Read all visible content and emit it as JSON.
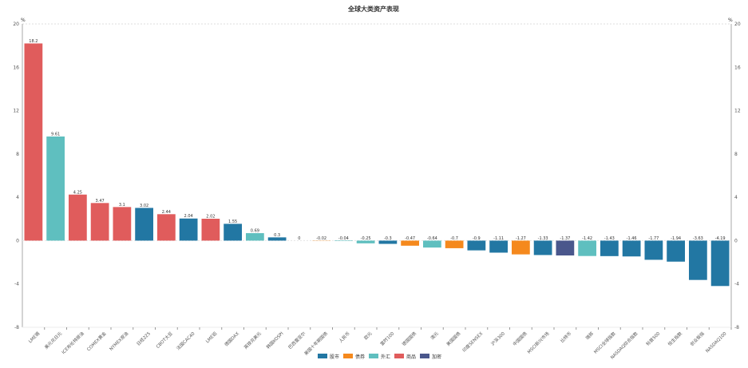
{
  "chart_data": {
    "type": "bar",
    "title": "全球大类资产表现",
    "ylabel": "%",
    "ylim": [
      -8,
      20
    ],
    "yticks": [
      20,
      16,
      12,
      8,
      4,
      0,
      -4,
      -8
    ],
    "grid": false,
    "legend_placement": "bottom",
    "legend": [
      {
        "name": "股市",
        "color": "#2277a3"
      },
      {
        "name": "债券",
        "color": "#f5891d"
      },
      {
        "name": "外汇",
        "color": "#5fbfbf"
      },
      {
        "name": "商品",
        "color": "#e05c5c"
      },
      {
        "name": "加密",
        "color": "#4a578c"
      }
    ],
    "categories": [
      "LME锡",
      "美元兑日元",
      "ICE布伦特原油",
      "COMEX黄金",
      "NYMEX原油",
      "日经225",
      "CBOT大豆",
      "法国CAC40",
      "LME铝",
      "德国DAX",
      "英镑兑美元",
      "韩国KOSPI",
      "巴西雷亚尔",
      "美国十年期国债",
      "人民币",
      "欧元",
      "富时100",
      "德国国债",
      "澳元",
      "美国国债",
      "印度SENSEX",
      "沪深300",
      "中国国债",
      "MSCI新兴市场",
      "比特币",
      "瑞郎",
      "MSCI全球指数",
      "NASDAQ综合指数",
      "标普500",
      "恒生指数",
      "创业板指",
      "NASDAQ100"
    ],
    "values": [
      18.2,
      9.61,
      4.25,
      3.47,
      3.1,
      3.02,
      2.44,
      2.04,
      2.02,
      1.55,
      0.69,
      0.3,
      0,
      -0.02,
      -0.04,
      -0.25,
      -0.3,
      -0.47,
      -0.64,
      -0.7,
      -0.9,
      -1.11,
      -1.27,
      -1.33,
      -1.37,
      -1.42,
      -1.43,
      -1.46,
      -1.77,
      -1.94,
      -3.63,
      -4.19
    ],
    "groups": [
      "商品",
      "外汇",
      "商品",
      "商品",
      "商品",
      "股市",
      "商品",
      "股市",
      "商品",
      "股市",
      "外汇",
      "股市",
      "外汇",
      "债券",
      "外汇",
      "外汇",
      "股市",
      "债券",
      "外汇",
      "债券",
      "股市",
      "股市",
      "债券",
      "股市",
      "加密",
      "外汇",
      "股市",
      "股市",
      "股市",
      "股市",
      "股市",
      "股市"
    ]
  }
}
